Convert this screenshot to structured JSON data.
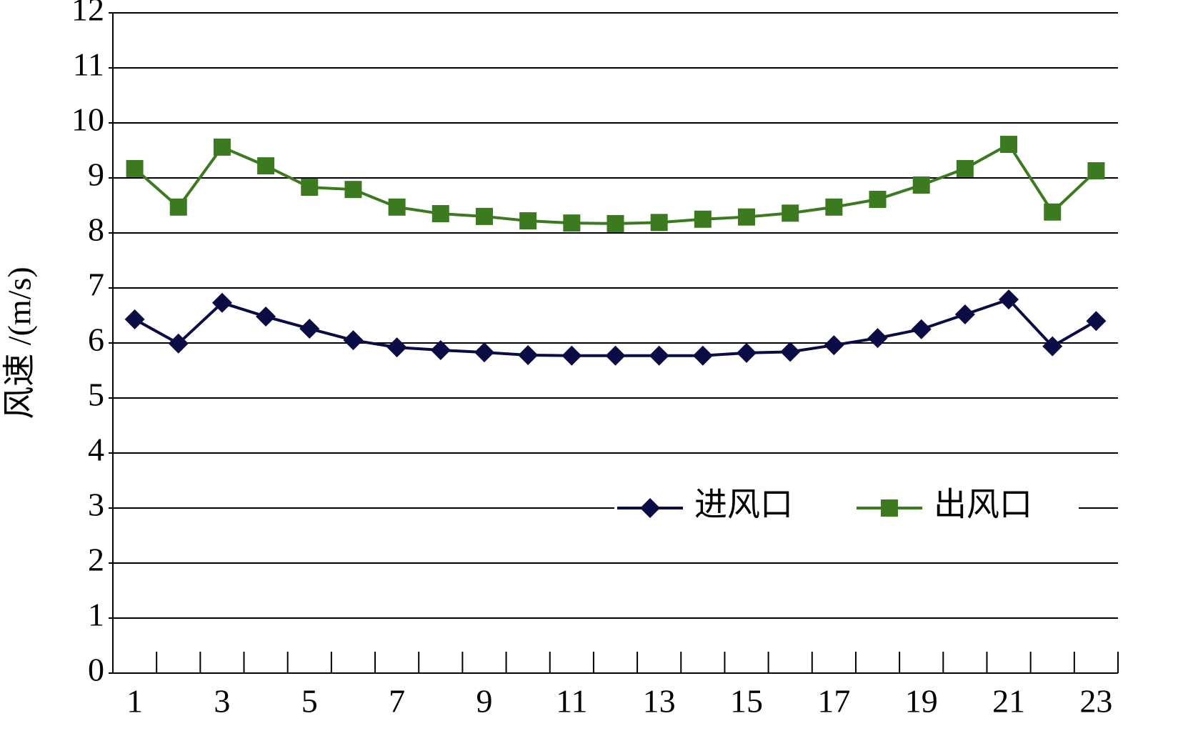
{
  "chart_data": {
    "type": "line",
    "y_label": "风速 /(m/s)",
    "categories": [
      "1",
      null,
      "3",
      null,
      "5",
      null,
      "7",
      null,
      "9",
      null,
      "11",
      null,
      "13",
      null,
      "15",
      null,
      "17",
      null,
      "19",
      null,
      "21",
      null,
      "23"
    ],
    "series": [
      {
        "name": "进风口",
        "color": "#0b0b45",
        "marker": "diamond",
        "values": [
          6.43,
          5.99,
          6.73,
          6.48,
          6.26,
          6.05,
          5.92,
          5.87,
          5.83,
          5.78,
          5.77,
          5.77,
          5.77,
          5.77,
          5.82,
          5.84,
          5.96,
          6.09,
          6.25,
          6.52,
          6.79,
          5.94,
          6.4
        ]
      },
      {
        "name": "出风口",
        "color": "#3b7a1f",
        "marker": "square",
        "values": [
          9.17,
          8.47,
          9.56,
          9.22,
          8.83,
          8.79,
          8.47,
          8.35,
          8.3,
          8.22,
          8.18,
          8.17,
          8.19,
          8.25,
          8.29,
          8.36,
          8.47,
          8.61,
          8.87,
          9.17,
          9.61,
          8.38,
          9.13
        ]
      }
    ],
    "ylim": [
      0,
      12
    ],
    "yticks": [
      0,
      1,
      2,
      3,
      4,
      5,
      6,
      7,
      8,
      9,
      10,
      11,
      12
    ],
    "grid": true,
    "legend": "lower right"
  }
}
